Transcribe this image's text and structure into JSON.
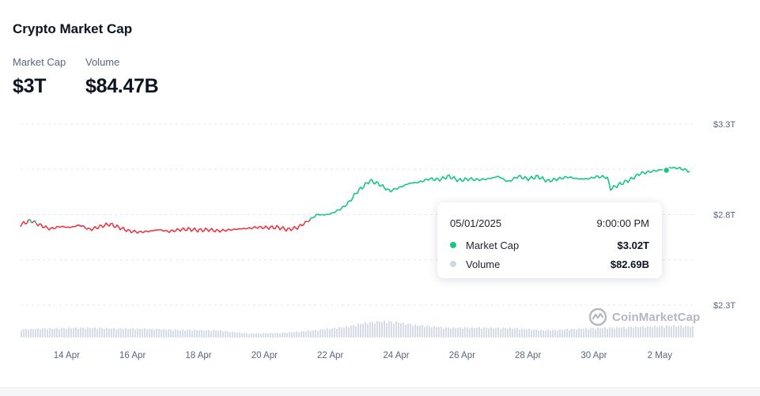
{
  "header": {
    "title": "Crypto Market Cap",
    "market_cap_label": "Market Cap",
    "market_cap_value": "$3T",
    "volume_label": "Volume",
    "volume_value": "$84.47B"
  },
  "tooltip": {
    "date": "05/01/2025",
    "time": "9:00:00 PM",
    "rows": [
      {
        "name": "Market Cap",
        "value": "$3.02T",
        "color": "#16c784"
      },
      {
        "name": "Volume",
        "value": "$82.69B",
        "color": "#cfd6e4"
      }
    ]
  },
  "watermark": "CoinMarketCap",
  "chart_data": {
    "type": "line",
    "x_ticks": [
      "14 Apr",
      "16 Apr",
      "18 Apr",
      "20 Apr",
      "22 Apr",
      "24 Apr",
      "26 Apr",
      "28 Apr",
      "30 Apr",
      "2 May"
    ],
    "y_ticks": [
      "$3.3T",
      "$2.8T",
      "$2.3T"
    ],
    "y_tick_values": [
      3.3,
      2.8,
      2.3
    ],
    "ylim": [
      2.3,
      3.3
    ],
    "x_range_days": [
      12.6,
      33.0
    ],
    "grid": "horizontal dashed",
    "colors": {
      "up": "#16c784",
      "down": "#ea3943",
      "volume": "#cfd6e4"
    },
    "series": [
      {
        "name": "Market Cap",
        "unit": "T USD",
        "x_days": [
          12.6,
          12.9,
          13.2,
          13.5,
          13.8,
          14.1,
          14.4,
          14.7,
          15.0,
          15.3,
          15.6,
          15.9,
          16.2,
          16.5,
          16.8,
          17.1,
          17.4,
          17.7,
          18.0,
          18.3,
          18.6,
          18.9,
          19.2,
          19.5,
          19.8,
          20.1,
          20.4,
          20.7,
          21.0,
          21.2,
          21.4,
          21.6,
          21.8,
          22.0,
          22.2,
          22.4,
          22.6,
          22.8,
          23.0,
          23.2,
          23.5,
          23.8,
          24.1,
          24.4,
          24.7,
          25.0,
          25.3,
          25.6,
          25.9,
          26.2,
          26.5,
          26.8,
          27.1,
          27.4,
          27.7,
          28.0,
          28.3,
          28.6,
          28.9,
          29.2,
          29.5,
          29.8,
          30.1,
          30.4,
          30.5,
          30.8,
          31.1,
          31.4,
          31.7,
          32.0,
          32.3,
          32.6,
          32.9,
          33.0
        ],
        "values": [
          2.744,
          2.768,
          2.741,
          2.721,
          2.734,
          2.729,
          2.742,
          2.717,
          2.733,
          2.748,
          2.728,
          2.709,
          2.703,
          2.708,
          2.717,
          2.706,
          2.716,
          2.72,
          2.713,
          2.717,
          2.71,
          2.715,
          2.72,
          2.724,
          2.73,
          2.728,
          2.73,
          2.717,
          2.728,
          2.75,
          2.774,
          2.801,
          2.798,
          2.804,
          2.82,
          2.841,
          2.875,
          2.924,
          2.955,
          2.988,
          2.967,
          2.93,
          2.95,
          2.973,
          2.979,
          2.998,
          2.993,
          3.012,
          2.989,
          2.997,
          2.992,
          2.998,
          3.011,
          2.981,
          3.012,
          2.997,
          3.01,
          2.985,
          2.997,
          3.008,
          2.998,
          2.997,
          3.01,
          3.007,
          2.942,
          2.969,
          2.993,
          3.027,
          3.037,
          3.046,
          3.06,
          3.056,
          3.04,
          3.035
        ]
      },
      {
        "name": "Volume",
        "unit": "relative",
        "x_days": [
          12.6,
          13.5,
          14.5,
          15.5,
          16.5,
          17.5,
          18.5,
          19.5,
          20.5,
          21.5,
          22.5,
          23.0,
          23.5,
          24.0,
          24.5,
          25.5,
          26.5,
          27.5,
          28.5,
          29.5,
          30.5,
          31.5,
          32.5,
          33.0
        ],
        "values": [
          0.45,
          0.5,
          0.55,
          0.5,
          0.48,
          0.42,
          0.4,
          0.22,
          0.25,
          0.4,
          0.6,
          0.8,
          0.9,
          0.85,
          0.7,
          0.55,
          0.55,
          0.52,
          0.4,
          0.48,
          0.55,
          0.6,
          0.65,
          0.6
        ]
      }
    ]
  }
}
